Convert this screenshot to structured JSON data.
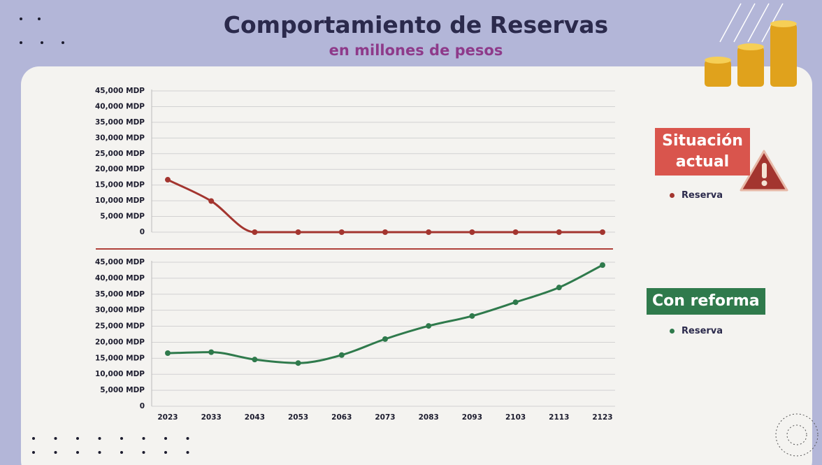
{
  "header": {
    "title": "Comportamiento de Reservas",
    "subtitle": "en millones de pesos"
  },
  "chart_data": [
    {
      "type": "line",
      "label": "Situación actual",
      "categories": [
        null,
        null,
        null,
        null,
        null,
        null,
        null,
        null,
        null,
        null,
        null
      ],
      "series": [
        {
          "name": "Reserva",
          "color": "#a3352f",
          "values": [
            16700,
            9900,
            0,
            0,
            0,
            0,
            0,
            0,
            0,
            0,
            0
          ]
        }
      ],
      "ylim": [
        0,
        45000
      ],
      "yticks": [
        0,
        {
          "value": 5000,
          "label": "5,000 MDP"
        },
        {
          "value": 10000,
          "label": "10,000 MDP"
        },
        {
          "value": 15000,
          "label": "15,000 MDP"
        },
        {
          "value": 20000,
          "label": "20,000 MDP"
        },
        {
          "value": 25000,
          "label": "25,000 MDP"
        },
        {
          "value": 30000,
          "label": "30,000 MDP"
        },
        {
          "value": 35000,
          "label": "35,000 MDP"
        },
        {
          "value": 45000,
          "label": "45,000 MDP"
        },
        {
          "value": 40000,
          "label": "40,000 MDP"
        }
      ],
      "grid": true
    },
    {
      "type": "line",
      "label": "Con reforma",
      "categories": [
        "2023",
        "2033",
        "2043",
        "2053",
        "2063",
        "2073",
        "2083",
        "2093",
        "2103",
        "2113",
        "2123"
      ],
      "series": [
        {
          "name": "Reserva",
          "color": "#2f7a4c",
          "values": [
            16600,
            16900,
            14600,
            13500,
            16000,
            21000,
            25100,
            28200,
            32500,
            37100,
            44100
          ]
        }
      ],
      "ylim": [
        0,
        45000
      ],
      "yticks": [
        0,
        {
          "value": 5000,
          "label": "5,000 MDP"
        },
        {
          "value": 10000,
          "label": "10,000 MDP"
        },
        {
          "value": 15000,
          "label": "15,000 MDP"
        },
        {
          "value": 20000,
          "label": "20,000 MDP"
        },
        {
          "value": 25000,
          "label": "25,000 MDP"
        },
        {
          "value": 30000,
          "label": "30,000 MDP"
        },
        {
          "value": 35000,
          "label": "35,000 MDP"
        },
        {
          "value": 40000,
          "label": "40,000 MDP"
        },
        {
          "value": 45000,
          "label": "45,000 MDP"
        }
      ],
      "grid": true
    }
  ]
}
